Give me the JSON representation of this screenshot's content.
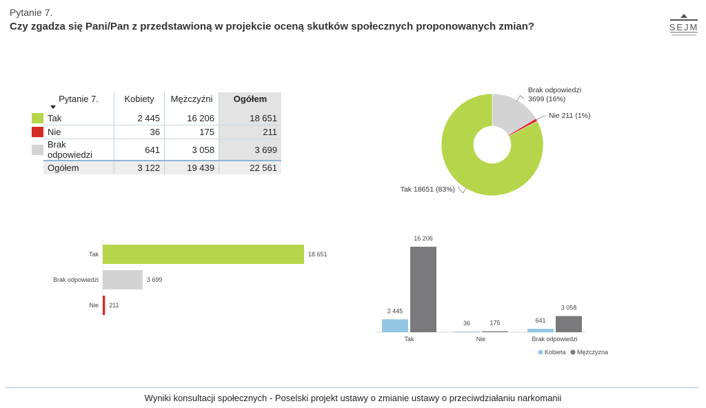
{
  "header": {
    "question_no": "Pytanie 7.",
    "title": "Czy zgadza się Pani/Pan z przedstawioną w projekcie oceną skutków społecznych  proponowanych zmian?"
  },
  "logo": {
    "text": "SEJM"
  },
  "colors": {
    "tak": "#b5d64b",
    "nie": "#d42a26",
    "brak": "#d3d3d3",
    "kobiety": "#92c6e2",
    "mezczyzni": "#7a7a7c"
  },
  "table": {
    "corner": "Pytanie 7.",
    "headers": [
      "Kobiety",
      "Mężczyźni",
      "Ogółem"
    ],
    "rows": [
      {
        "label": "Tak",
        "kobiety": "2 445",
        "mezczyzni": "16 206",
        "ogolem": "18 651"
      },
      {
        "label": "Nie",
        "kobiety": "36",
        "mezczyzni": "175",
        "ogolem": "211"
      },
      {
        "label": "Brak odpowiedzi",
        "kobiety": "641",
        "mezczyzni": "3 058",
        "ogolem": "3 699"
      }
    ],
    "total": {
      "label": "Ogółem",
      "kobiety": "3 122",
      "mezczyzni": "19 439",
      "ogolem": "22 561"
    }
  },
  "chart_data": [
    {
      "type": "pie",
      "variant": "donut",
      "categories": [
        "Tak",
        "Nie",
        "Brak odpowiedzi"
      ],
      "values": [
        18651,
        211,
        3699
      ],
      "labels": [
        "Tak 18651 (83%)",
        "Nie 211 (1%)",
        "Brak odpowiedzi\n3699 (16%)"
      ]
    },
    {
      "type": "bar",
      "orientation": "horizontal",
      "categories": [
        "Tak",
        "Brak odpowiedzi",
        "Nie"
      ],
      "values": [
        18651,
        3699,
        211
      ],
      "data_labels": [
        "18 651",
        "3 699",
        "211"
      ]
    },
    {
      "type": "bar",
      "orientation": "vertical",
      "categories": [
        "Tak",
        "Nie",
        "Brak odpowiedzi"
      ],
      "series": [
        {
          "name": "Kobieta",
          "values": [
            2445,
            36,
            641
          ],
          "data_labels": [
            "2 445",
            "36",
            "641"
          ]
        },
        {
          "name": "Mężczyzna",
          "values": [
            16206,
            175,
            3058
          ],
          "data_labels": [
            "16 206",
            "175",
            "3 058"
          ]
        }
      ],
      "legend": "bottom-right"
    }
  ],
  "footer": "Wyniki konsultacji społecznych - Poselski projekt ustawy o zmianie ustawy o przeciwdziałaniu narkomanii"
}
